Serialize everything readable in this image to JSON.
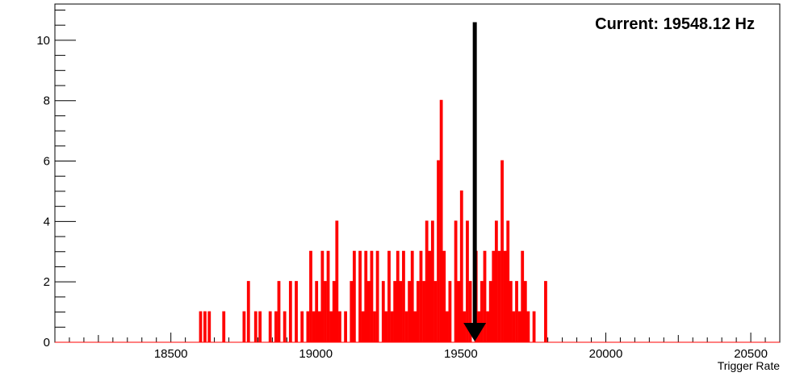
{
  "chart_data": {
    "type": "histogram",
    "xlabel": "Trigger Rate",
    "ylabel": "",
    "xlim": [
      18100,
      20600
    ],
    "ylim": [
      0,
      11.2
    ],
    "x_ticks": [
      18500,
      19000,
      19500,
      20000,
      20500
    ],
    "y_ticks": [
      0,
      2,
      4,
      6,
      8,
      10
    ],
    "bin_width": 5,
    "series": [
      {
        "color": "#ff0000",
        "bins": [
          {
            "x": 18600,
            "count": 1
          },
          {
            "x": 18615,
            "count": 1
          },
          {
            "x": 18630,
            "count": 1
          },
          {
            "x": 18680,
            "count": 1
          },
          {
            "x": 18750,
            "count": 1
          },
          {
            "x": 18765,
            "count": 2
          },
          {
            "x": 18790,
            "count": 1
          },
          {
            "x": 18805,
            "count": 1
          },
          {
            "x": 18840,
            "count": 1
          },
          {
            "x": 18860,
            "count": 1
          },
          {
            "x": 18870,
            "count": 2
          },
          {
            "x": 18890,
            "count": 1
          },
          {
            "x": 18910,
            "count": 2
          },
          {
            "x": 18930,
            "count": 2
          },
          {
            "x": 18950,
            "count": 1
          },
          {
            "x": 18970,
            "count": 1
          },
          {
            "x": 18980,
            "count": 3
          },
          {
            "x": 18990,
            "count": 1
          },
          {
            "x": 19000,
            "count": 2
          },
          {
            "x": 19010,
            "count": 1
          },
          {
            "x": 19020,
            "count": 3
          },
          {
            "x": 19030,
            "count": 2
          },
          {
            "x": 19040,
            "count": 3
          },
          {
            "x": 19050,
            "count": 1
          },
          {
            "x": 19060,
            "count": 2
          },
          {
            "x": 19070,
            "count": 4
          },
          {
            "x": 19080,
            "count": 1
          },
          {
            "x": 19100,
            "count": 1
          },
          {
            "x": 19120,
            "count": 2
          },
          {
            "x": 19130,
            "count": 3
          },
          {
            "x": 19150,
            "count": 3
          },
          {
            "x": 19160,
            "count": 1
          },
          {
            "x": 19170,
            "count": 3
          },
          {
            "x": 19180,
            "count": 2
          },
          {
            "x": 19190,
            "count": 3
          },
          {
            "x": 19200,
            "count": 1
          },
          {
            "x": 19210,
            "count": 3
          },
          {
            "x": 19230,
            "count": 2
          },
          {
            "x": 19240,
            "count": 1
          },
          {
            "x": 19250,
            "count": 3
          },
          {
            "x": 19260,
            "count": 1
          },
          {
            "x": 19270,
            "count": 2
          },
          {
            "x": 19280,
            "count": 3
          },
          {
            "x": 19290,
            "count": 2
          },
          {
            "x": 19300,
            "count": 3
          },
          {
            "x": 19310,
            "count": 1
          },
          {
            "x": 19320,
            "count": 2
          },
          {
            "x": 19330,
            "count": 3
          },
          {
            "x": 19340,
            "count": 1
          },
          {
            "x": 19350,
            "count": 2
          },
          {
            "x": 19360,
            "count": 3
          },
          {
            "x": 19370,
            "count": 2
          },
          {
            "x": 19380,
            "count": 4
          },
          {
            "x": 19390,
            "count": 3
          },
          {
            "x": 19400,
            "count": 4
          },
          {
            "x": 19410,
            "count": 2
          },
          {
            "x": 19420,
            "count": 6
          },
          {
            "x": 19430,
            "count": 8
          },
          {
            "x": 19440,
            "count": 3
          },
          {
            "x": 19450,
            "count": 1
          },
          {
            "x": 19460,
            "count": 2
          },
          {
            "x": 19480,
            "count": 4
          },
          {
            "x": 19490,
            "count": 2
          },
          {
            "x": 19500,
            "count": 5
          },
          {
            "x": 19510,
            "count": 1
          },
          {
            "x": 19520,
            "count": 4
          },
          {
            "x": 19530,
            "count": 2
          },
          {
            "x": 19550,
            "count": 3
          },
          {
            "x": 19560,
            "count": 1
          },
          {
            "x": 19570,
            "count": 2
          },
          {
            "x": 19580,
            "count": 3
          },
          {
            "x": 19590,
            "count": 1
          },
          {
            "x": 19600,
            "count": 2
          },
          {
            "x": 19610,
            "count": 3
          },
          {
            "x": 19620,
            "count": 4
          },
          {
            "x": 19630,
            "count": 3
          },
          {
            "x": 19640,
            "count": 6
          },
          {
            "x": 19650,
            "count": 3
          },
          {
            "x": 19660,
            "count": 4
          },
          {
            "x": 19670,
            "count": 2
          },
          {
            "x": 19680,
            "count": 1
          },
          {
            "x": 19690,
            "count": 2
          },
          {
            "x": 19700,
            "count": 1
          },
          {
            "x": 19710,
            "count": 3
          },
          {
            "x": 19720,
            "count": 2
          },
          {
            "x": 19730,
            "count": 1
          },
          {
            "x": 19750,
            "count": 1
          },
          {
            "x": 19790,
            "count": 2
          }
        ]
      }
    ],
    "marker": {
      "x": 19548.12,
      "label": "Current: 19548.12 Hz",
      "color": "#000000"
    },
    "grid": false,
    "legend": "none"
  }
}
